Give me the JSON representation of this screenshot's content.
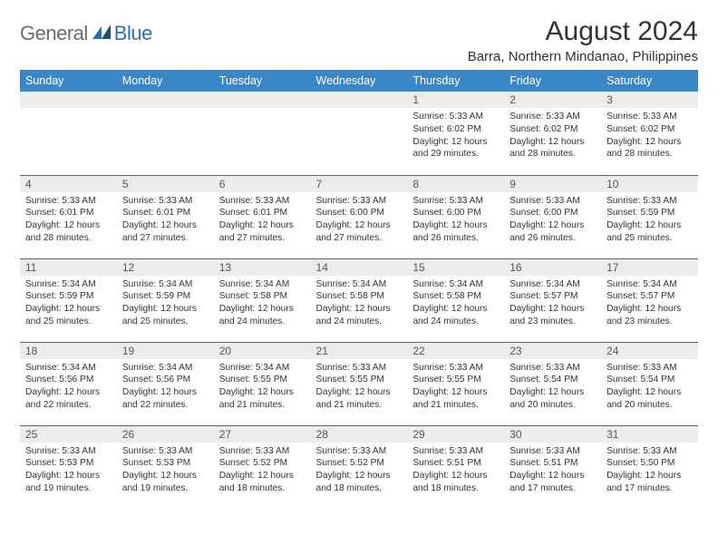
{
  "logo": {
    "general": "General",
    "blue": "Blue"
  },
  "title": "August 2024",
  "location": "Barra, Northern Mindanao, Philippines",
  "colors": {
    "header_bg": "#3a87c7",
    "header_text": "#ffffff",
    "border": "#2f6fb0",
    "daybar_bg": "#ececec",
    "logo_gray": "#6b6b6b",
    "logo_blue": "#2f6fb0"
  },
  "weekdays": [
    "Sunday",
    "Monday",
    "Tuesday",
    "Wednesday",
    "Thursday",
    "Friday",
    "Saturday"
  ],
  "weeks": [
    [
      null,
      null,
      null,
      null,
      {
        "n": "1",
        "sr": "5:33 AM",
        "ss": "6:02 PM",
        "dl": "12 hours and 29 minutes."
      },
      {
        "n": "2",
        "sr": "5:33 AM",
        "ss": "6:02 PM",
        "dl": "12 hours and 28 minutes."
      },
      {
        "n": "3",
        "sr": "5:33 AM",
        "ss": "6:02 PM",
        "dl": "12 hours and 28 minutes."
      }
    ],
    [
      {
        "n": "4",
        "sr": "5:33 AM",
        "ss": "6:01 PM",
        "dl": "12 hours and 28 minutes."
      },
      {
        "n": "5",
        "sr": "5:33 AM",
        "ss": "6:01 PM",
        "dl": "12 hours and 27 minutes."
      },
      {
        "n": "6",
        "sr": "5:33 AM",
        "ss": "6:01 PM",
        "dl": "12 hours and 27 minutes."
      },
      {
        "n": "7",
        "sr": "5:33 AM",
        "ss": "6:00 PM",
        "dl": "12 hours and 27 minutes."
      },
      {
        "n": "8",
        "sr": "5:33 AM",
        "ss": "6:00 PM",
        "dl": "12 hours and 26 minutes."
      },
      {
        "n": "9",
        "sr": "5:33 AM",
        "ss": "6:00 PM",
        "dl": "12 hours and 26 minutes."
      },
      {
        "n": "10",
        "sr": "5:33 AM",
        "ss": "5:59 PM",
        "dl": "12 hours and 25 minutes."
      }
    ],
    [
      {
        "n": "11",
        "sr": "5:34 AM",
        "ss": "5:59 PM",
        "dl": "12 hours and 25 minutes."
      },
      {
        "n": "12",
        "sr": "5:34 AM",
        "ss": "5:59 PM",
        "dl": "12 hours and 25 minutes."
      },
      {
        "n": "13",
        "sr": "5:34 AM",
        "ss": "5:58 PM",
        "dl": "12 hours and 24 minutes."
      },
      {
        "n": "14",
        "sr": "5:34 AM",
        "ss": "5:58 PM",
        "dl": "12 hours and 24 minutes."
      },
      {
        "n": "15",
        "sr": "5:34 AM",
        "ss": "5:58 PM",
        "dl": "12 hours and 24 minutes."
      },
      {
        "n": "16",
        "sr": "5:34 AM",
        "ss": "5:57 PM",
        "dl": "12 hours and 23 minutes."
      },
      {
        "n": "17",
        "sr": "5:34 AM",
        "ss": "5:57 PM",
        "dl": "12 hours and 23 minutes."
      }
    ],
    [
      {
        "n": "18",
        "sr": "5:34 AM",
        "ss": "5:56 PM",
        "dl": "12 hours and 22 minutes."
      },
      {
        "n": "19",
        "sr": "5:34 AM",
        "ss": "5:56 PM",
        "dl": "12 hours and 22 minutes."
      },
      {
        "n": "20",
        "sr": "5:34 AM",
        "ss": "5:55 PM",
        "dl": "12 hours and 21 minutes."
      },
      {
        "n": "21",
        "sr": "5:33 AM",
        "ss": "5:55 PM",
        "dl": "12 hours and 21 minutes."
      },
      {
        "n": "22",
        "sr": "5:33 AM",
        "ss": "5:55 PM",
        "dl": "12 hours and 21 minutes."
      },
      {
        "n": "23",
        "sr": "5:33 AM",
        "ss": "5:54 PM",
        "dl": "12 hours and 20 minutes."
      },
      {
        "n": "24",
        "sr": "5:33 AM",
        "ss": "5:54 PM",
        "dl": "12 hours and 20 minutes."
      }
    ],
    [
      {
        "n": "25",
        "sr": "5:33 AM",
        "ss": "5:53 PM",
        "dl": "12 hours and 19 minutes."
      },
      {
        "n": "26",
        "sr": "5:33 AM",
        "ss": "5:53 PM",
        "dl": "12 hours and 19 minutes."
      },
      {
        "n": "27",
        "sr": "5:33 AM",
        "ss": "5:52 PM",
        "dl": "12 hours and 18 minutes."
      },
      {
        "n": "28",
        "sr": "5:33 AM",
        "ss": "5:52 PM",
        "dl": "12 hours and 18 minutes."
      },
      {
        "n": "29",
        "sr": "5:33 AM",
        "ss": "5:51 PM",
        "dl": "12 hours and 18 minutes."
      },
      {
        "n": "30",
        "sr": "5:33 AM",
        "ss": "5:51 PM",
        "dl": "12 hours and 17 minutes."
      },
      {
        "n": "31",
        "sr": "5:33 AM",
        "ss": "5:50 PM",
        "dl": "12 hours and 17 minutes."
      }
    ]
  ],
  "labels": {
    "sunrise": "Sunrise:",
    "sunset": "Sunset:",
    "daylight": "Daylight:"
  }
}
